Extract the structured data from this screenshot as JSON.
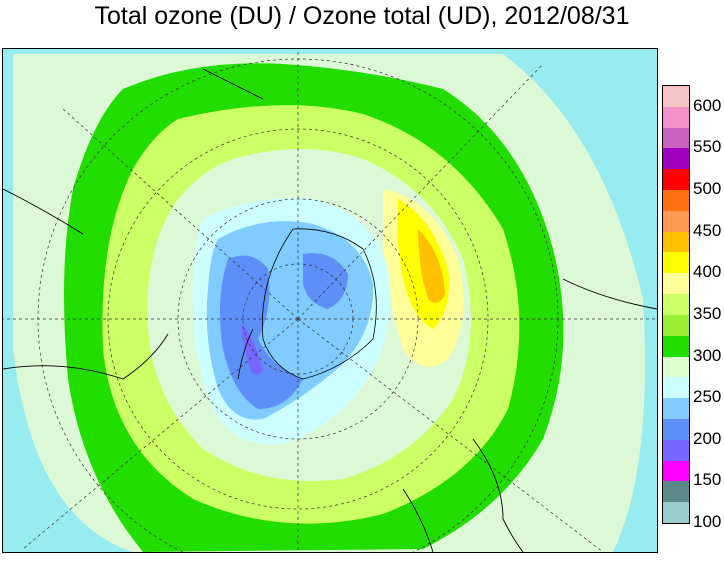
{
  "title": "Total ozone (DU) / Ozone total (UD), 2012/08/31",
  "colorbar": {
    "colors": [
      "#f7c4c8",
      "#f591c9",
      "#c963bf",
      "#a000c0",
      "#ff0000",
      "#ff7010",
      "#ff9a50",
      "#ffc000",
      "#ffff00",
      "#ffff9a",
      "#ccff66",
      "#99ee33",
      "#22dd00",
      "#ddffd0",
      "#ccffff",
      "#80ccff",
      "#5e8ef7",
      "#7766ff",
      "#ff00ff",
      "#5c8a8a",
      "#99cccc"
    ],
    "ticks": [
      "600",
      "550",
      "500",
      "450",
      "400",
      "350",
      "300",
      "250",
      "200",
      "150",
      "100"
    ]
  }
}
